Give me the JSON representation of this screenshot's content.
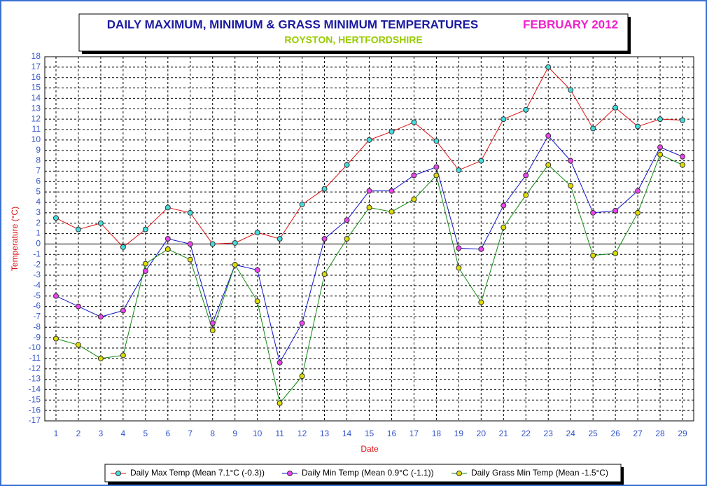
{
  "chart_data": {
    "type": "line",
    "title": "DAILY MAXIMUM, MINIMUM & GRASS MINIMUM TEMPERATURES",
    "period": "FEBRUARY 2012",
    "subtitle": "ROYSTON, HERTFORDSHIRE",
    "x_label": "Date",
    "y_label": "Temperature (°C)",
    "x": [
      1,
      2,
      3,
      4,
      5,
      6,
      7,
      8,
      9,
      10,
      11,
      12,
      13,
      14,
      15,
      16,
      17,
      18,
      19,
      20,
      21,
      22,
      23,
      24,
      25,
      26,
      27,
      28,
      29
    ],
    "xlim": [
      0.5,
      29.5
    ],
    "xticks": [
      1,
      2,
      3,
      4,
      5,
      6,
      7,
      8,
      9,
      10,
      11,
      12,
      13,
      14,
      15,
      16,
      17,
      18,
      19,
      20,
      21,
      22,
      23,
      24,
      25,
      26,
      27,
      28,
      29
    ],
    "ylim": [
      -17,
      18
    ],
    "yticks": [
      -17,
      -16,
      -15,
      -14,
      -13,
      -12,
      -11,
      -10,
      -9,
      -8,
      -7,
      -6,
      -5,
      -4,
      -3,
      -2,
      -1,
      0,
      1,
      2,
      3,
      4,
      5,
      6,
      7,
      8,
      9,
      10,
      11,
      12,
      13,
      14,
      15,
      16,
      17,
      18
    ],
    "grid": true,
    "legend": "bottom",
    "series": [
      {
        "name": "Daily Max Temp (Mean 7.1°C (-0.3))",
        "color": "#dd1111",
        "marker_color": "#44dddd",
        "values": [
          2.5,
          1.4,
          2.0,
          -0.3,
          1.4,
          3.5,
          3.0,
          0.0,
          0.1,
          1.1,
          0.5,
          3.8,
          5.3,
          7.6,
          10.0,
          10.8,
          11.7,
          9.9,
          7.1,
          8.0,
          12.0,
          12.9,
          17.0,
          14.8,
          11.1,
          13.1,
          11.3,
          12.0,
          11.9
        ]
      },
      {
        "name": "Daily Min Temp (Mean 0.9°C (-1.1))",
        "color": "#1111cc",
        "marker_color": "#ee44ee",
        "values": [
          -5.0,
          -6.0,
          -7.0,
          -6.4,
          -2.6,
          0.5,
          0.0,
          -7.6,
          -2.0,
          -2.5,
          -11.4,
          -7.6,
          0.5,
          2.3,
          5.1,
          5.1,
          6.6,
          7.4,
          -0.4,
          -0.5,
          3.7,
          6.6,
          10.4,
          8.0,
          3.0,
          3.2,
          5.1,
          9.3,
          8.4
        ]
      },
      {
        "name": "Daily Grass Min Temp (Mean -1.5°C)",
        "color": "#118811",
        "marker_color": "#dddd00",
        "values": [
          -9.1,
          -9.7,
          -11.0,
          -10.7,
          -1.9,
          -0.5,
          -1.5,
          -8.3,
          -2.0,
          -5.5,
          -15.3,
          -12.7,
          -2.9,
          0.5,
          3.5,
          3.1,
          4.3,
          6.6,
          -2.3,
          -5.6,
          1.6,
          4.7,
          7.6,
          5.6,
          -1.1,
          -0.9,
          3.0,
          8.6,
          7.6
        ]
      }
    ]
  }
}
